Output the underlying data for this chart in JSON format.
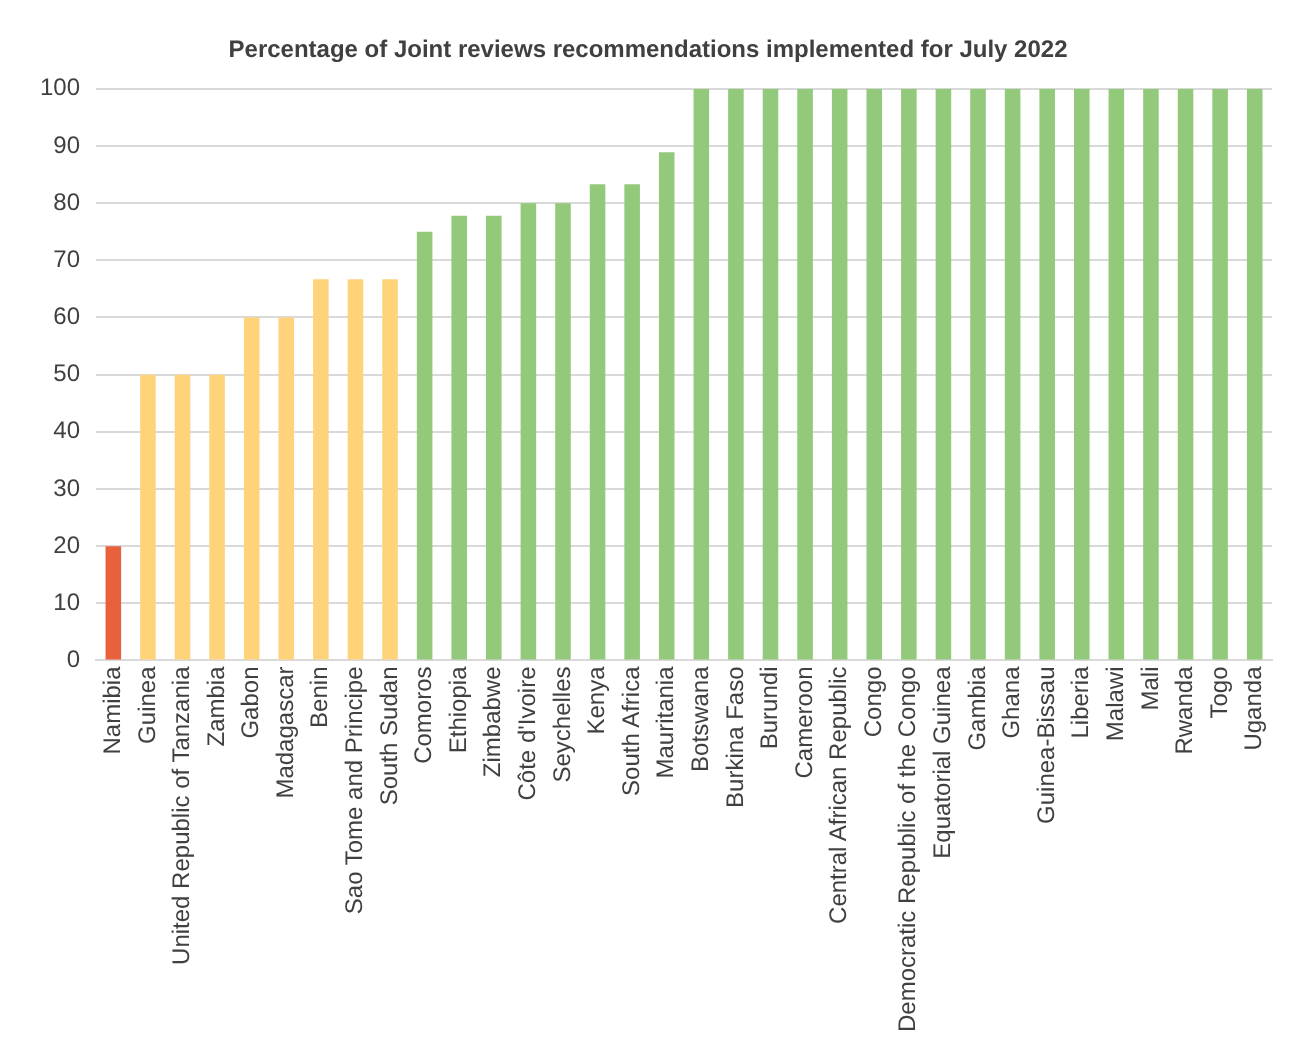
{
  "chart_data": {
    "type": "bar",
    "title": "Percentage of Joint reviews recommendations implemented for July 2022",
    "categories": [
      "Namibia",
      "Guinea",
      "United Republic of Tanzania",
      "Zambia",
      "Gabon",
      "Madagascar",
      "Benin",
      "Sao Tome and Principe",
      "South Sudan",
      "Comoros",
      "Ethiopia",
      "Zimbabwe",
      "Côte d'Ivoire",
      "Seychelles",
      "Kenya",
      "South Africa",
      "Mauritania",
      "Botswana",
      "Burkina Faso",
      "Burundi",
      "Cameroon",
      "Central African Republic",
      "Congo",
      "Democratic Republic of the Congo",
      "Equatorial Guinea",
      "Gambia",
      "Ghana",
      "Guinea-Bissau",
      "Liberia",
      "Malawi",
      "Mali",
      "Rwanda",
      "Togo",
      "Uganda"
    ],
    "values": [
      20,
      50,
      50,
      50,
      60,
      60,
      66.7,
      66.7,
      66.7,
      75,
      77.8,
      77.8,
      80,
      80,
      83.3,
      83.3,
      88.9,
      100,
      100,
      100,
      100,
      100,
      100,
      100,
      100,
      100,
      100,
      100,
      100,
      100,
      100,
      100,
      100,
      100
    ],
    "colors": [
      "#e8603c",
      "#ffd37a",
      "#ffd37a",
      "#ffd37a",
      "#ffd37a",
      "#ffd37a",
      "#ffd37a",
      "#ffd37a",
      "#ffd37a",
      "#93c97b",
      "#93c97b",
      "#93c97b",
      "#93c97b",
      "#93c97b",
      "#93c97b",
      "#93c97b",
      "#93c97b",
      "#93c97b",
      "#93c97b",
      "#93c97b",
      "#93c97b",
      "#93c97b",
      "#93c97b",
      "#93c97b",
      "#93c97b",
      "#93c97b",
      "#93c97b",
      "#93c97b",
      "#93c97b",
      "#93c97b",
      "#93c97b",
      "#93c97b",
      "#93c97b",
      "#93c97b"
    ],
    "ylim": [
      0,
      100
    ],
    "yticks": [
      0,
      10,
      20,
      30,
      40,
      50,
      60,
      70,
      80,
      90,
      100
    ],
    "grid": "y",
    "legend": false
  }
}
